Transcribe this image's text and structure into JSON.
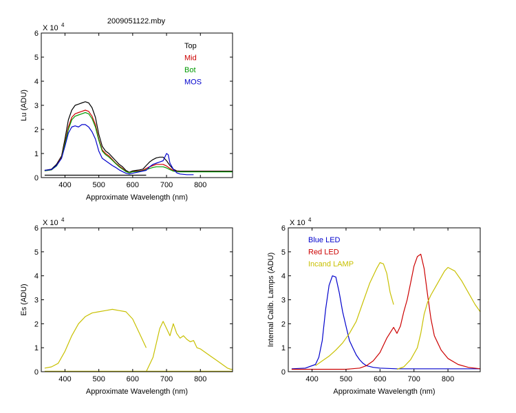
{
  "figure": {
    "title": "2009051122.mby"
  },
  "chart_data": [
    {
      "type": "line",
      "title": "2009051122.mby",
      "xlabel": "Approximate Wavelength (nm)",
      "ylabel": "Lu (ADU)",
      "y_multiplier": "X 10",
      "y_exponent": "4",
      "xlim": [
        330,
        895
      ],
      "ylim": [
        0,
        6
      ],
      "xticks": [
        400,
        500,
        600,
        700,
        800
      ],
      "yticks": [
        0,
        1,
        2,
        3,
        4,
        5,
        6
      ],
      "grid": false,
      "legend_position": "top-right",
      "series": [
        {
          "name": "Top",
          "color": "#000000",
          "x": [
            340,
            360,
            375,
            390,
            400,
            410,
            420,
            430,
            440,
            450,
            460,
            470,
            480,
            490,
            500,
            510,
            520,
            530,
            540,
            550,
            560,
            570,
            580,
            590,
            600,
            610,
            620,
            630,
            640,
            650,
            660,
            670,
            680,
            690,
            700,
            710,
            720,
            730,
            740,
            760,
            800,
            850,
            895
          ],
          "y": [
            0.3,
            0.35,
            0.55,
            0.9,
            1.6,
            2.4,
            2.8,
            3.0,
            3.05,
            3.1,
            3.15,
            3.1,
            2.9,
            2.5,
            1.8,
            1.3,
            1.1,
            1.0,
            0.85,
            0.7,
            0.55,
            0.45,
            0.3,
            0.22,
            0.28,
            0.3,
            0.32,
            0.35,
            0.5,
            0.65,
            0.75,
            0.82,
            0.85,
            0.85,
            0.7,
            0.5,
            0.35,
            0.28,
            0.27,
            0.27,
            0.27,
            0.27,
            0.27
          ]
        },
        {
          "name": "Mid",
          "color": "#cc0000",
          "x": [
            340,
            360,
            375,
            390,
            400,
            410,
            420,
            430,
            440,
            450,
            460,
            470,
            480,
            490,
            500,
            510,
            520,
            530,
            540,
            550,
            560,
            570,
            580,
            590,
            600,
            610,
            620,
            630,
            640,
            650,
            660,
            670,
            680,
            690,
            700,
            710,
            720,
            730,
            740,
            760,
            800,
            850,
            895
          ],
          "y": [
            0.28,
            0.32,
            0.5,
            0.85,
            1.45,
            2.1,
            2.5,
            2.65,
            2.7,
            2.75,
            2.8,
            2.75,
            2.55,
            2.2,
            1.6,
            1.15,
            1.0,
            0.9,
            0.75,
            0.6,
            0.48,
            0.38,
            0.26,
            0.2,
            0.25,
            0.27,
            0.28,
            0.3,
            0.38,
            0.45,
            0.5,
            0.55,
            0.55,
            0.55,
            0.48,
            0.38,
            0.3,
            0.26,
            0.25,
            0.25,
            0.25,
            0.25,
            0.25
          ]
        },
        {
          "name": "Bot",
          "color": "#009900",
          "x": [
            340,
            360,
            375,
            390,
            400,
            410,
            420,
            430,
            440,
            450,
            460,
            470,
            480,
            490,
            500,
            510,
            520,
            530,
            540,
            550,
            560,
            570,
            580,
            590,
            600,
            610,
            620,
            630,
            640,
            650,
            660,
            670,
            680,
            690,
            700,
            710,
            720,
            730,
            740,
            760,
            800,
            850,
            895
          ],
          "y": [
            0.28,
            0.32,
            0.48,
            0.82,
            1.4,
            2.0,
            2.4,
            2.55,
            2.6,
            2.65,
            2.7,
            2.65,
            2.45,
            2.1,
            1.55,
            1.1,
            0.95,
            0.85,
            0.72,
            0.58,
            0.45,
            0.35,
            0.25,
            0.2,
            0.24,
            0.25,
            0.26,
            0.28,
            0.33,
            0.38,
            0.42,
            0.45,
            0.45,
            0.45,
            0.4,
            0.33,
            0.27,
            0.25,
            0.24,
            0.24,
            0.24,
            0.24,
            0.24
          ]
        },
        {
          "name": "MOS",
          "color": "#0000cc",
          "x": [
            340,
            360,
            375,
            390,
            400,
            410,
            420,
            430,
            440,
            450,
            460,
            470,
            480,
            490,
            500,
            510,
            520,
            530,
            540,
            550,
            560,
            570,
            580,
            590,
            600,
            640,
            650,
            660,
            670,
            680,
            690,
            700,
            705,
            710,
            720,
            730,
            740,
            760,
            780
          ],
          "y": [
            0.3,
            0.33,
            0.5,
            0.8,
            1.3,
            1.85,
            2.1,
            2.15,
            2.1,
            2.2,
            2.2,
            2.1,
            1.9,
            1.6,
            1.1,
            0.8,
            0.7,
            0.6,
            0.5,
            0.42,
            0.32,
            0.25,
            0.18,
            0.15,
            0.18,
            0.3,
            0.45,
            0.55,
            0.6,
            0.65,
            0.7,
            1.0,
            0.95,
            0.6,
            0.35,
            0.2,
            0.15,
            0.12,
            0.12
          ]
        },
        {
          "name": "",
          "color": "#000000",
          "x": [
            340,
            640
          ],
          "y": [
            0.1,
            0.1
          ]
        }
      ]
    },
    {
      "type": "line",
      "title": "",
      "xlabel": "Approximate Wavelength (nm)",
      "ylabel": "Es (ADU)",
      "y_multiplier": "X 10",
      "y_exponent": "4",
      "xlim": [
        330,
        895
      ],
      "ylim": [
        0,
        6
      ],
      "xticks": [
        400,
        500,
        600,
        700,
        800
      ],
      "yticks": [
        0,
        1,
        2,
        3,
        4,
        5,
        6
      ],
      "grid": false,
      "series": [
        {
          "name": "",
          "color": "#c8c000",
          "x": [
            340,
            360,
            380,
            400,
            420,
            440,
            460,
            480,
            500,
            520,
            540,
            560,
            580,
            600,
            620,
            640
          ],
          "y": [
            0.15,
            0.2,
            0.35,
            0.85,
            1.5,
            2.0,
            2.3,
            2.45,
            2.5,
            2.55,
            2.6,
            2.55,
            2.5,
            2.2,
            1.6,
            1.0
          ]
        },
        {
          "name": "",
          "color": "#c8c000",
          "x": [
            640,
            660,
            670,
            680,
            690,
            700,
            710,
            720,
            730,
            740,
            750,
            760,
            770,
            780,
            790,
            800,
            810,
            820,
            830,
            840,
            850,
            860,
            870,
            880,
            890,
            895
          ],
          "y": [
            0.0,
            0.6,
            1.2,
            1.8,
            2.1,
            1.8,
            1.5,
            2.0,
            1.6,
            1.4,
            1.5,
            1.35,
            1.25,
            1.3,
            1.0,
            0.95,
            0.85,
            0.75,
            0.65,
            0.55,
            0.45,
            0.35,
            0.25,
            0.15,
            0.1,
            0.1
          ]
        },
        {
          "name": "",
          "color": "#c8c000",
          "x": [
            340,
            895
          ],
          "y": [
            0.02,
            0.02
          ]
        }
      ]
    },
    {
      "type": "line",
      "title": "",
      "xlabel": "Approximate Wavelength (nm)",
      "ylabel": "Internal Calib. Lamps (ADU)",
      "y_multiplier": "X 10",
      "y_exponent": "4",
      "xlim": [
        330,
        895
      ],
      "ylim": [
        0,
        6
      ],
      "xticks": [
        400,
        500,
        600,
        700,
        800
      ],
      "yticks": [
        0,
        1,
        2,
        3,
        4,
        5,
        6
      ],
      "grid": false,
      "legend_position": "top-left",
      "series": [
        {
          "name": "Blue LED",
          "color": "#0000cc",
          "x": [
            340,
            380,
            410,
            420,
            430,
            440,
            450,
            460,
            470,
            480,
            490,
            500,
            510,
            520,
            530,
            540,
            550,
            560,
            580,
            600,
            650,
            700,
            750,
            800,
            895
          ],
          "y": [
            0.12,
            0.15,
            0.3,
            0.6,
            1.3,
            2.6,
            3.6,
            4.0,
            3.95,
            3.3,
            2.5,
            1.9,
            1.3,
            1.0,
            0.7,
            0.5,
            0.35,
            0.25,
            0.18,
            0.15,
            0.12,
            0.12,
            0.12,
            0.12,
            0.12
          ]
        },
        {
          "name": "Red LED",
          "color": "#cc0000",
          "x": [
            340,
            500,
            540,
            560,
            580,
            600,
            620,
            640,
            650,
            660,
            670,
            680,
            690,
            700,
            710,
            720,
            730,
            740,
            750,
            760,
            780,
            800,
            830,
            860,
            895
          ],
          "y": [
            0.1,
            0.1,
            0.15,
            0.25,
            0.45,
            0.8,
            1.4,
            1.85,
            1.6,
            1.9,
            2.5,
            3.0,
            3.7,
            4.4,
            4.8,
            4.9,
            4.3,
            3.2,
            2.2,
            1.5,
            0.9,
            0.55,
            0.3,
            0.18,
            0.12
          ]
        },
        {
          "name": "Incand LAMP",
          "color": "#c8c000",
          "x": [
            410,
            430,
            450,
            470,
            490,
            510,
            530,
            550,
            570,
            590,
            600,
            610,
            620,
            630,
            640
          ],
          "y": [
            0.25,
            0.45,
            0.65,
            0.9,
            1.2,
            1.6,
            2.1,
            2.9,
            3.7,
            4.3,
            4.55,
            4.5,
            4.1,
            3.3,
            2.8
          ]
        },
        {
          "name": "",
          "color": "#c8c000",
          "x": [
            650,
            670,
            690,
            710,
            720,
            730,
            740,
            750,
            770,
            790,
            800,
            820,
            840,
            860,
            880,
            895
          ],
          "y": [
            0.1,
            0.2,
            0.5,
            1.0,
            1.6,
            2.4,
            2.9,
            3.2,
            3.7,
            4.2,
            4.35,
            4.2,
            3.8,
            3.3,
            2.8,
            2.5
          ]
        }
      ]
    }
  ]
}
